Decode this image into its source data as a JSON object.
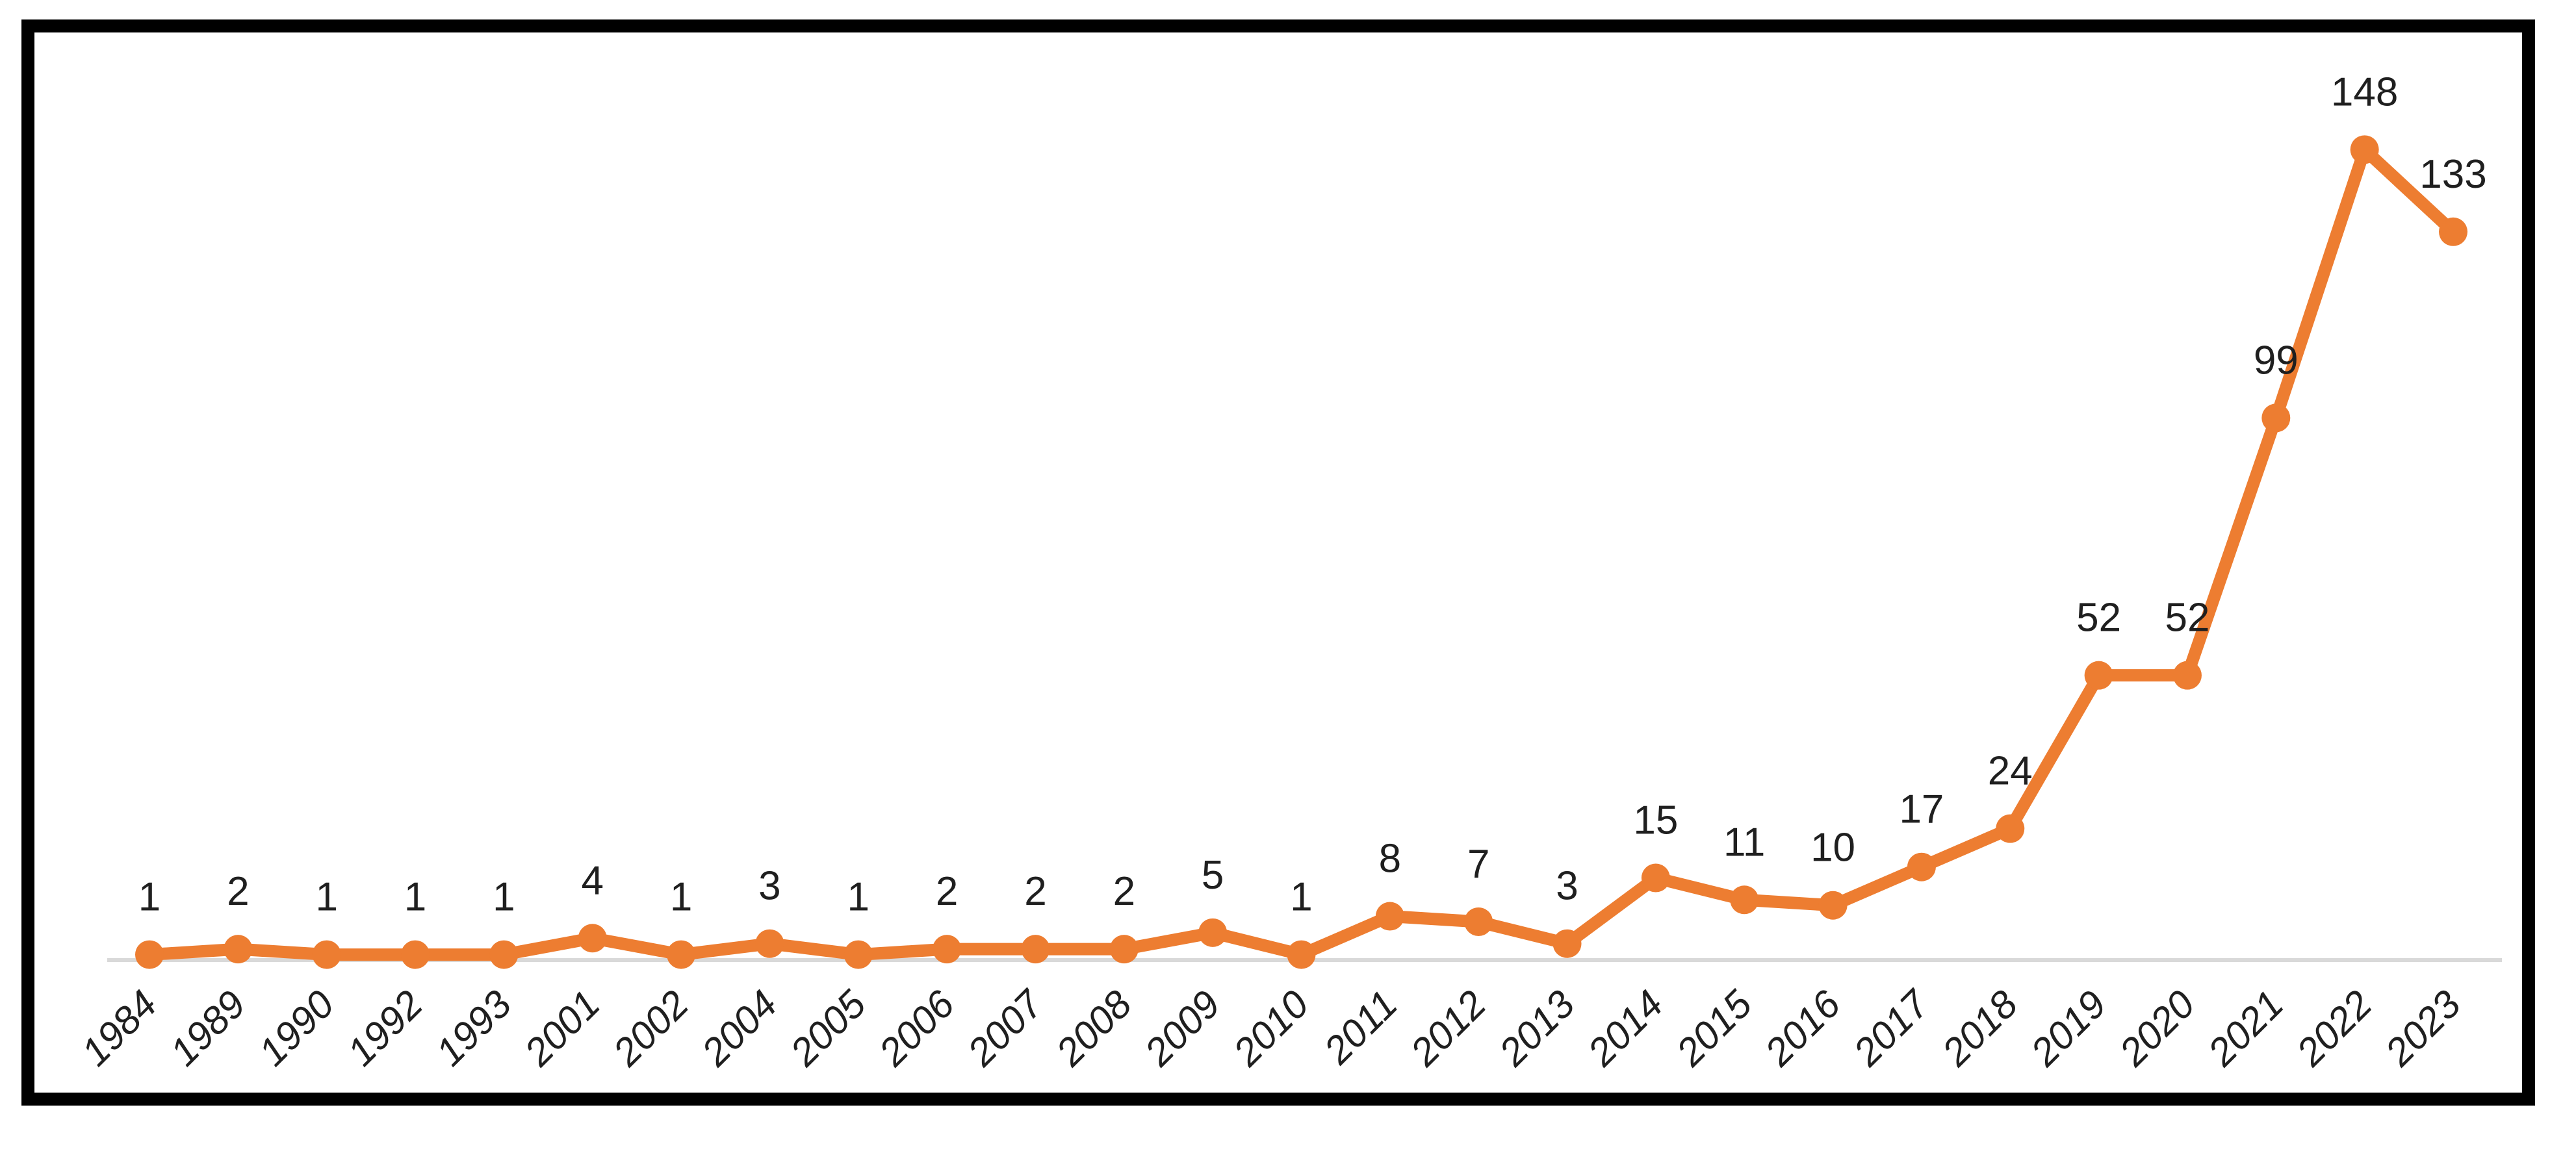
{
  "chart_data": {
    "type": "line",
    "title": "",
    "xlabel": "",
    "ylabel": "",
    "categories": [
      "1984",
      "1989",
      "1990",
      "1992",
      "1993",
      "2001",
      "2002",
      "2004",
      "2005",
      "2006",
      "2007",
      "2008",
      "2009",
      "2010",
      "2011",
      "2012",
      "2013",
      "2014",
      "2015",
      "2016",
      "2017",
      "2018",
      "2019",
      "2020",
      "2021",
      "2022",
      "2023"
    ],
    "values": [
      1,
      2,
      1,
      1,
      1,
      4,
      1,
      3,
      1,
      2,
      2,
      2,
      5,
      1,
      8,
      7,
      3,
      15,
      11,
      10,
      17,
      24,
      52,
      52,
      99,
      148,
      133
    ],
    "data_labels_visible": true,
    "grid": false,
    "legend": null,
    "ylim": [
      0,
      160
    ],
    "y_axis_visible": false,
    "marker": "circle",
    "colors": {
      "line": "#ED7D31",
      "marker": "#ED7D31",
      "axis_line": "#D9D9D9",
      "value_label_text": "#1f1f1f",
      "year_label_text": "#1f1f1f",
      "frame_border": "#000000",
      "background": "#ffffff"
    }
  }
}
